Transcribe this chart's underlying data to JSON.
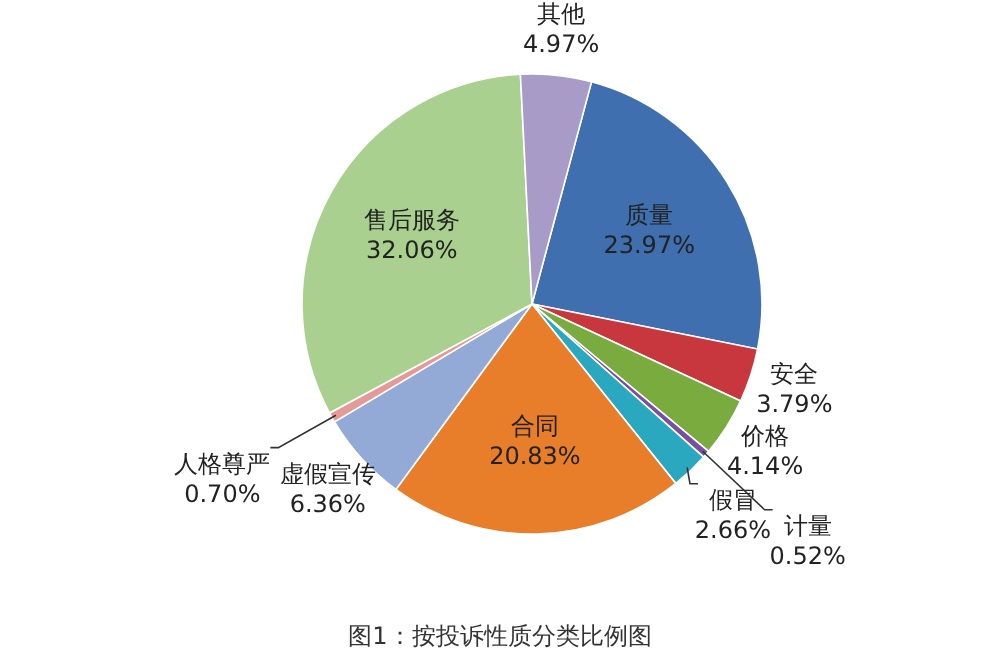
{
  "chart_data": {
    "type": "pie",
    "title": "图1：按投诉性质分类比例图",
    "categories": [
      "质量",
      "安全",
      "价格",
      "计量",
      "假冒",
      "合同",
      "虚假宣传",
      "人格尊严",
      "售后服务",
      "其他"
    ],
    "values": [
      23.97,
      3.79,
      4.14,
      0.52,
      2.66,
      20.83,
      6.36,
      0.7,
      32.06,
      4.97
    ],
    "value_labels": [
      "23.97%",
      "3.79%",
      "4.14%",
      "0.52%",
      "2.66%",
      "20.83%",
      "6.36%",
      "0.70%",
      "32.06%",
      "4.97%"
    ],
    "colors": [
      "#3f6fae",
      "#c8373d",
      "#7aab3f",
      "#7a4f9f",
      "#2aa8c0",
      "#e87e2a",
      "#93a9d6",
      "#e69a98",
      "#a9d08e",
      "#a89bc8"
    ],
    "legend": false
  }
}
